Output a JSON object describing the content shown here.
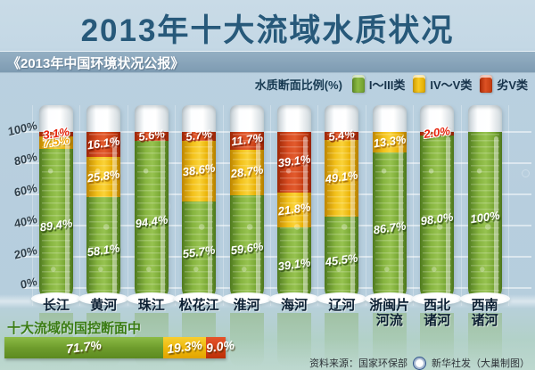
{
  "title": "2013年十大流域水质状况",
  "subtitle": "《2013年中国环境状况公报》",
  "legend": {
    "label": "水质断面比例(%)",
    "items": [
      {
        "name": "I～III类",
        "key": "green",
        "color": "#76a832"
      },
      {
        "name": "IV～V类",
        "key": "yellow",
        "color": "#f2c11d"
      },
      {
        "name": "劣V类",
        "key": "red",
        "color": "#d6441f"
      }
    ]
  },
  "chart_data": {
    "type": "bar",
    "stacked": true,
    "title": "2013年十大流域水质状况",
    "ylabel": "水质断面比例(%)",
    "ylim": [
      0,
      100
    ],
    "yticks": [
      "100%",
      "80%",
      "60%",
      "40%",
      "20%",
      "0%"
    ],
    "grid": true,
    "legend_position": "top-right",
    "categories": [
      "长江",
      "黄河",
      "珠江",
      "松花江",
      "淮河",
      "海河",
      "辽河",
      "浙闽片河流",
      "西北诸河",
      "西南诸河"
    ],
    "category_lines": [
      [
        "长江"
      ],
      [
        "黄河"
      ],
      [
        "珠江"
      ],
      [
        "松花江"
      ],
      [
        "淮河"
      ],
      [
        "海河"
      ],
      [
        "辽河"
      ],
      [
        "浙闽片",
        "河流"
      ],
      [
        "西北",
        "诸河"
      ],
      [
        "西南",
        "诸河"
      ]
    ],
    "series": [
      {
        "name": "I～III类",
        "key": "green",
        "values": [
          89.4,
          58.1,
          94.4,
          55.7,
          59.6,
          39.1,
          45.5,
          86.7,
          98.0,
          100
        ],
        "labels": [
          "89.4%",
          "58.1%",
          "94.4%",
          "55.7%",
          "59.6%",
          "39.1%",
          "45.5%",
          "86.7%",
          "98.0%",
          "100%"
        ]
      },
      {
        "name": "IV～V类",
        "key": "yellow",
        "values": [
          7.5,
          25.8,
          0,
          38.6,
          28.7,
          21.8,
          49.1,
          13.3,
          0,
          0
        ],
        "labels": [
          "7.5%",
          "25.8%",
          null,
          "38.6%",
          "28.7%",
          "21.8%",
          "49.1%",
          "13.3%",
          null,
          null
        ]
      },
      {
        "name": "劣V类",
        "key": "red",
        "values": [
          3.1,
          16.1,
          5.6,
          5.7,
          11.7,
          39.1,
          5.4,
          0,
          2.0,
          0
        ],
        "labels": [
          "3.1%",
          "16.1%",
          "5.6%",
          "5.7%",
          "11.7%",
          "39.1%",
          "5.4%",
          null,
          "2.0%",
          null
        ]
      }
    ],
    "overall": {
      "label": "十大流域的国控断面中",
      "segments": [
        {
          "key": "green",
          "name": "I～III类",
          "value": 71.7,
          "label": "71.7%"
        },
        {
          "key": "yellow",
          "name": "IV～V类",
          "value": 19.3,
          "label": "19.3%"
        },
        {
          "key": "red",
          "name": "劣V类",
          "value": 9.0,
          "label": "9.0%"
        }
      ]
    }
  },
  "footer": {
    "source": "资料来源：国家环保部",
    "credit": "新华社发（大巢制图）"
  },
  "colors": {
    "title": "#27597a",
    "background_top": "#c6d9e5",
    "background_main": "#b7cede",
    "background_bottom": "#bdd8cf",
    "strip": "#85a0b6",
    "green": "#76a832",
    "yellow": "#f2c11d",
    "red": "#d6441f",
    "overall_label": "#3b7d15"
  }
}
